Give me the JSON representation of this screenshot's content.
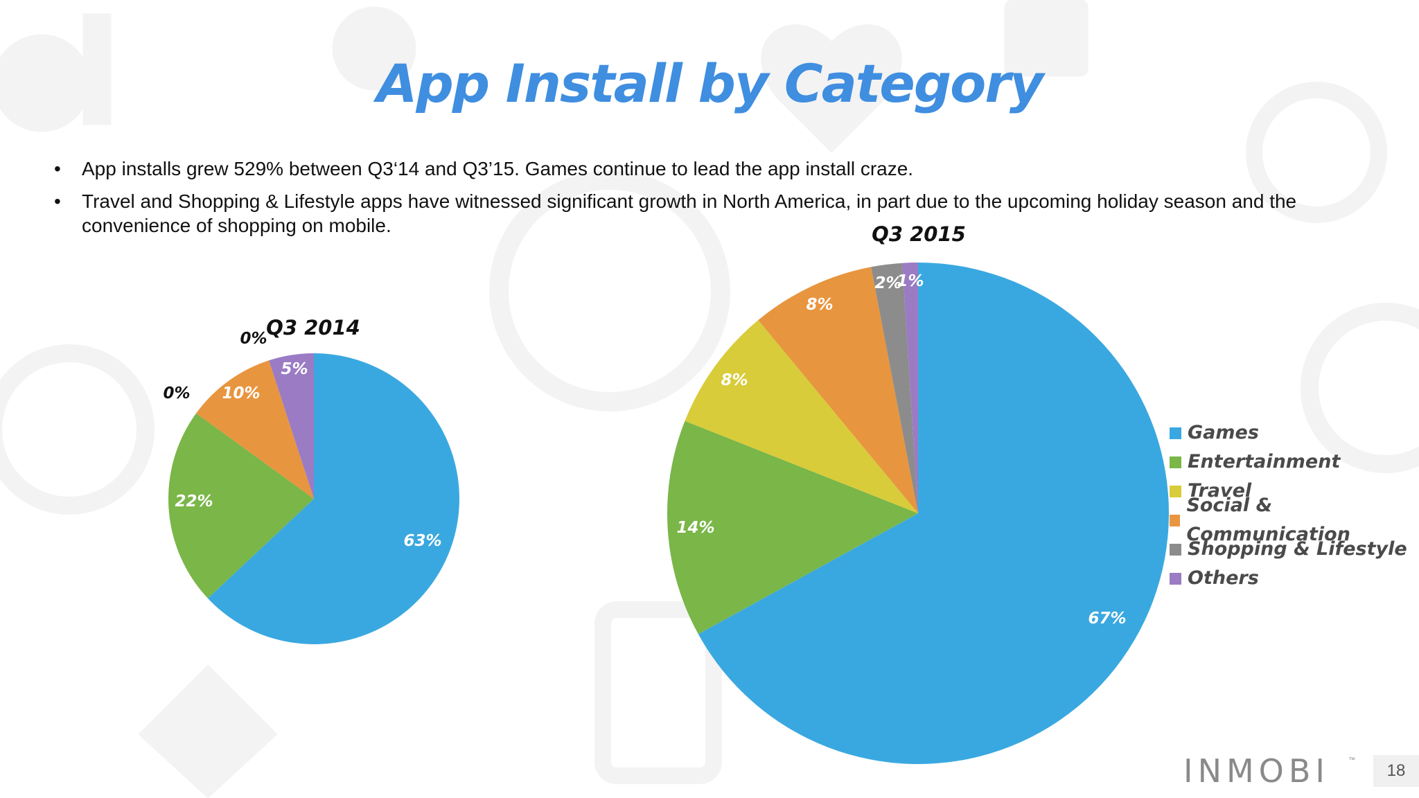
{
  "slide": {
    "title": "App Install by Category",
    "bullets": [
      "App installs grew 529% between Q3‘14 and Q3’15. Games continue to lead the app install craze.",
      "Travel and Shopping & Lifestyle apps have witnessed significant growth in North America, in part due to the upcoming holiday season and the convenience of shopping on mobile."
    ],
    "logo": "INMOBI",
    "logo_tm": "™",
    "page_number": "18"
  },
  "legend": {
    "position": "right",
    "items": [
      "Games",
      "Entertainment",
      "Travel",
      "Social & Communication",
      "Shopping & Lifestyle",
      "Others"
    ]
  },
  "colors": {
    "Games": "#3aa8e0",
    "Entertainment": "#7ab648",
    "Travel": "#d8cc3a",
    "Social & Communication": "#e8953f",
    "Shopping & Lifestyle": "#8c8c8c",
    "Others": "#9a7bc4"
  },
  "chart_data": [
    {
      "type": "pie",
      "title": "Q3 2014",
      "categories": [
        "Games",
        "Entertainment",
        "Travel",
        "Social & Communication",
        "Shopping & Lifestyle",
        "Others"
      ],
      "values": [
        63,
        22,
        0,
        10,
        0,
        5
      ],
      "labels": [
        "63%",
        "22%",
        "0%",
        "10%",
        "0%",
        "5%"
      ]
    },
    {
      "type": "pie",
      "title": "Q3 2015",
      "categories": [
        "Games",
        "Entertainment",
        "Travel",
        "Social & Communication",
        "Shopping & Lifestyle",
        "Others"
      ],
      "values": [
        67,
        14,
        8,
        8,
        2,
        1
      ],
      "labels": [
        "67%",
        "14%",
        "8%",
        "8%",
        "2%",
        "1%"
      ]
    }
  ]
}
